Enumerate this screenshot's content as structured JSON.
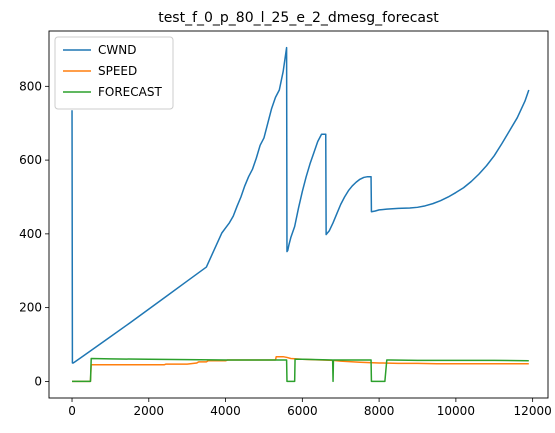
{
  "chart_data": {
    "type": "line",
    "title": "test_f_0_p_80_l_25_e_2_dmesg_forecast",
    "xlabel": "",
    "ylabel": "",
    "xlim": [
      -600,
      12400
    ],
    "ylim": [
      -45,
      950
    ],
    "xticks": [
      0,
      2000,
      4000,
      6000,
      8000,
      10000,
      12000
    ],
    "yticks": [
      0,
      200,
      400,
      600,
      800
    ],
    "grid": false,
    "legend": "top-left",
    "series": [
      {
        "name": "CWND",
        "color": "#1f77b4",
        "x": [
          0,
          10,
          30,
          60,
          200,
          500,
          1000,
          1500,
          2000,
          2500,
          3000,
          3500,
          3900,
          4000,
          4100,
          4200,
          4300,
          4400,
          4500,
          4600,
          4700,
          4800,
          4900,
          5000,
          5100,
          5200,
          5300,
          5400,
          5500,
          5590,
          5600,
          5620,
          5650,
          5700,
          5800,
          5900,
          6000,
          6100,
          6200,
          6300,
          6400,
          6500,
          6610,
          6620,
          6650,
          6700,
          6800,
          6900,
          7000,
          7100,
          7200,
          7300,
          7400,
          7500,
          7600,
          7700,
          7790,
          7800,
          7900,
          8000,
          8200,
          8500,
          8800,
          9000,
          9200,
          9400,
          9600,
          9800,
          10000,
          10200,
          10400,
          10600,
          10800,
          11000,
          11200,
          11400,
          11600,
          11800,
          11900
        ],
        "y": [
          735,
          50,
          50,
          52,
          62,
          84,
          121,
          158,
          196,
          234,
          272,
          310,
          402,
          416,
          430,
          448,
          475,
          500,
          530,
          555,
          575,
          605,
          640,
          660,
          700,
          740,
          770,
          790,
          840,
          905,
          352,
          355,
          370,
          390,
          420,
          470,
          515,
          555,
          590,
          620,
          650,
          670,
          670,
          398,
          402,
          408,
          430,
          455,
          480,
          500,
          517,
          530,
          540,
          548,
          553,
          555,
          555,
          460,
          462,
          465,
          467,
          469,
          470,
          472,
          476,
          482,
          490,
          500,
          512,
          525,
          542,
          562,
          585,
          612,
          645,
          680,
          715,
          760,
          790
        ]
      },
      {
        "name": "SPEED",
        "color": "#ff7f0e",
        "x": [
          0,
          480,
          500,
          1000,
          2000,
          2400,
          2450,
          3000,
          3250,
          3300,
          3500,
          3550,
          4000,
          4050,
          5000,
          5300,
          5320,
          5500,
          5600,
          5700,
          6000,
          6500,
          6800,
          7000,
          7500,
          8000,
          8100,
          8500,
          9000,
          9500,
          10000,
          11000,
          11900
        ],
        "y": [
          0,
          0,
          45,
          45,
          45,
          45,
          47,
          47,
          50,
          53,
          53,
          56,
          56,
          58,
          58,
          58,
          67,
          67,
          65,
          62,
          60,
          58,
          57,
          55,
          52,
          50,
          50,
          49,
          49,
          48,
          48,
          48,
          48
        ]
      },
      {
        "name": "FORECAST",
        "color": "#2ca02c",
        "x": [
          0,
          480,
          500,
          1000,
          2000,
          3000,
          4000,
          5000,
          5590,
          5600,
          5800,
          5810,
          6000,
          6790,
          6800,
          6810,
          7000,
          7790,
          7800,
          8000,
          8150,
          8200,
          8300,
          9000,
          10000,
          11000,
          11900
        ],
        "y": [
          0,
          0,
          62,
          61,
          60,
          59,
          58,
          58,
          58,
          0,
          0,
          60,
          60,
          58,
          0,
          58,
          58,
          58,
          0,
          0,
          0,
          58,
          58,
          57,
          57,
          57,
          56
        ]
      }
    ]
  }
}
